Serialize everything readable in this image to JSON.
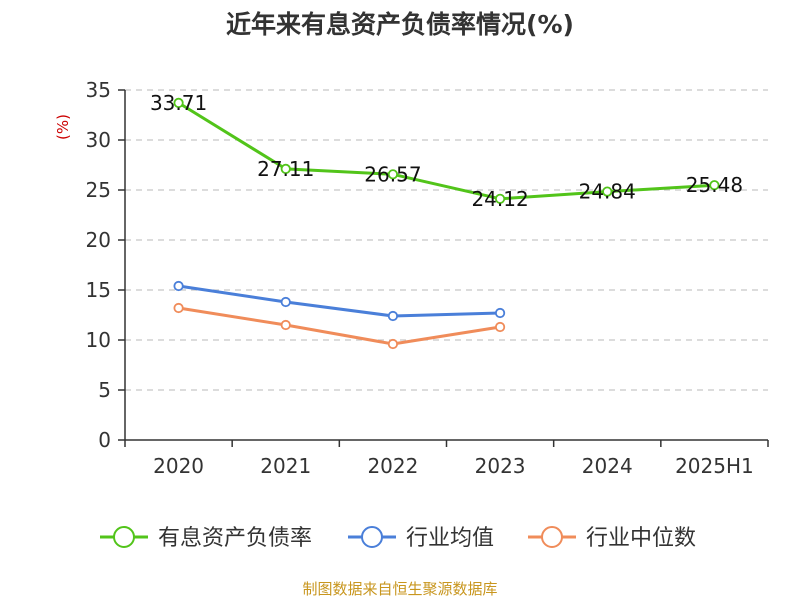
{
  "chart_data": {
    "type": "line",
    "title": "近年来有息资产负债率情况(%)",
    "ylabel": "(%)",
    "categories": [
      "2020",
      "2021",
      "2022",
      "2023",
      "2024",
      "2025H1"
    ],
    "ylim": [
      0,
      35
    ],
    "yticks": [
      "0",
      "5",
      "10",
      "15",
      "20",
      "25",
      "30",
      "35"
    ],
    "grid": true,
    "legend_position": "bottom",
    "series": [
      {
        "name": "有息资产负债率",
        "color": "#52c41a",
        "values": [
          33.71,
          27.11,
          26.57,
          24.12,
          24.84,
          25.48
        ],
        "labels": [
          "33.71",
          "27.11",
          "26.57",
          "24.12",
          "24.84",
          "25.48"
        ]
      },
      {
        "name": "行业均值",
        "color": "#4a7fd9",
        "values": [
          15.4,
          13.8,
          12.4,
          12.7,
          null,
          null
        ]
      },
      {
        "name": "行业中位数",
        "color": "#f08c5a",
        "values": [
          13.2,
          11.5,
          9.6,
          11.3,
          null,
          null
        ]
      }
    ],
    "source": "制图数据来自恒生聚源数据库"
  }
}
